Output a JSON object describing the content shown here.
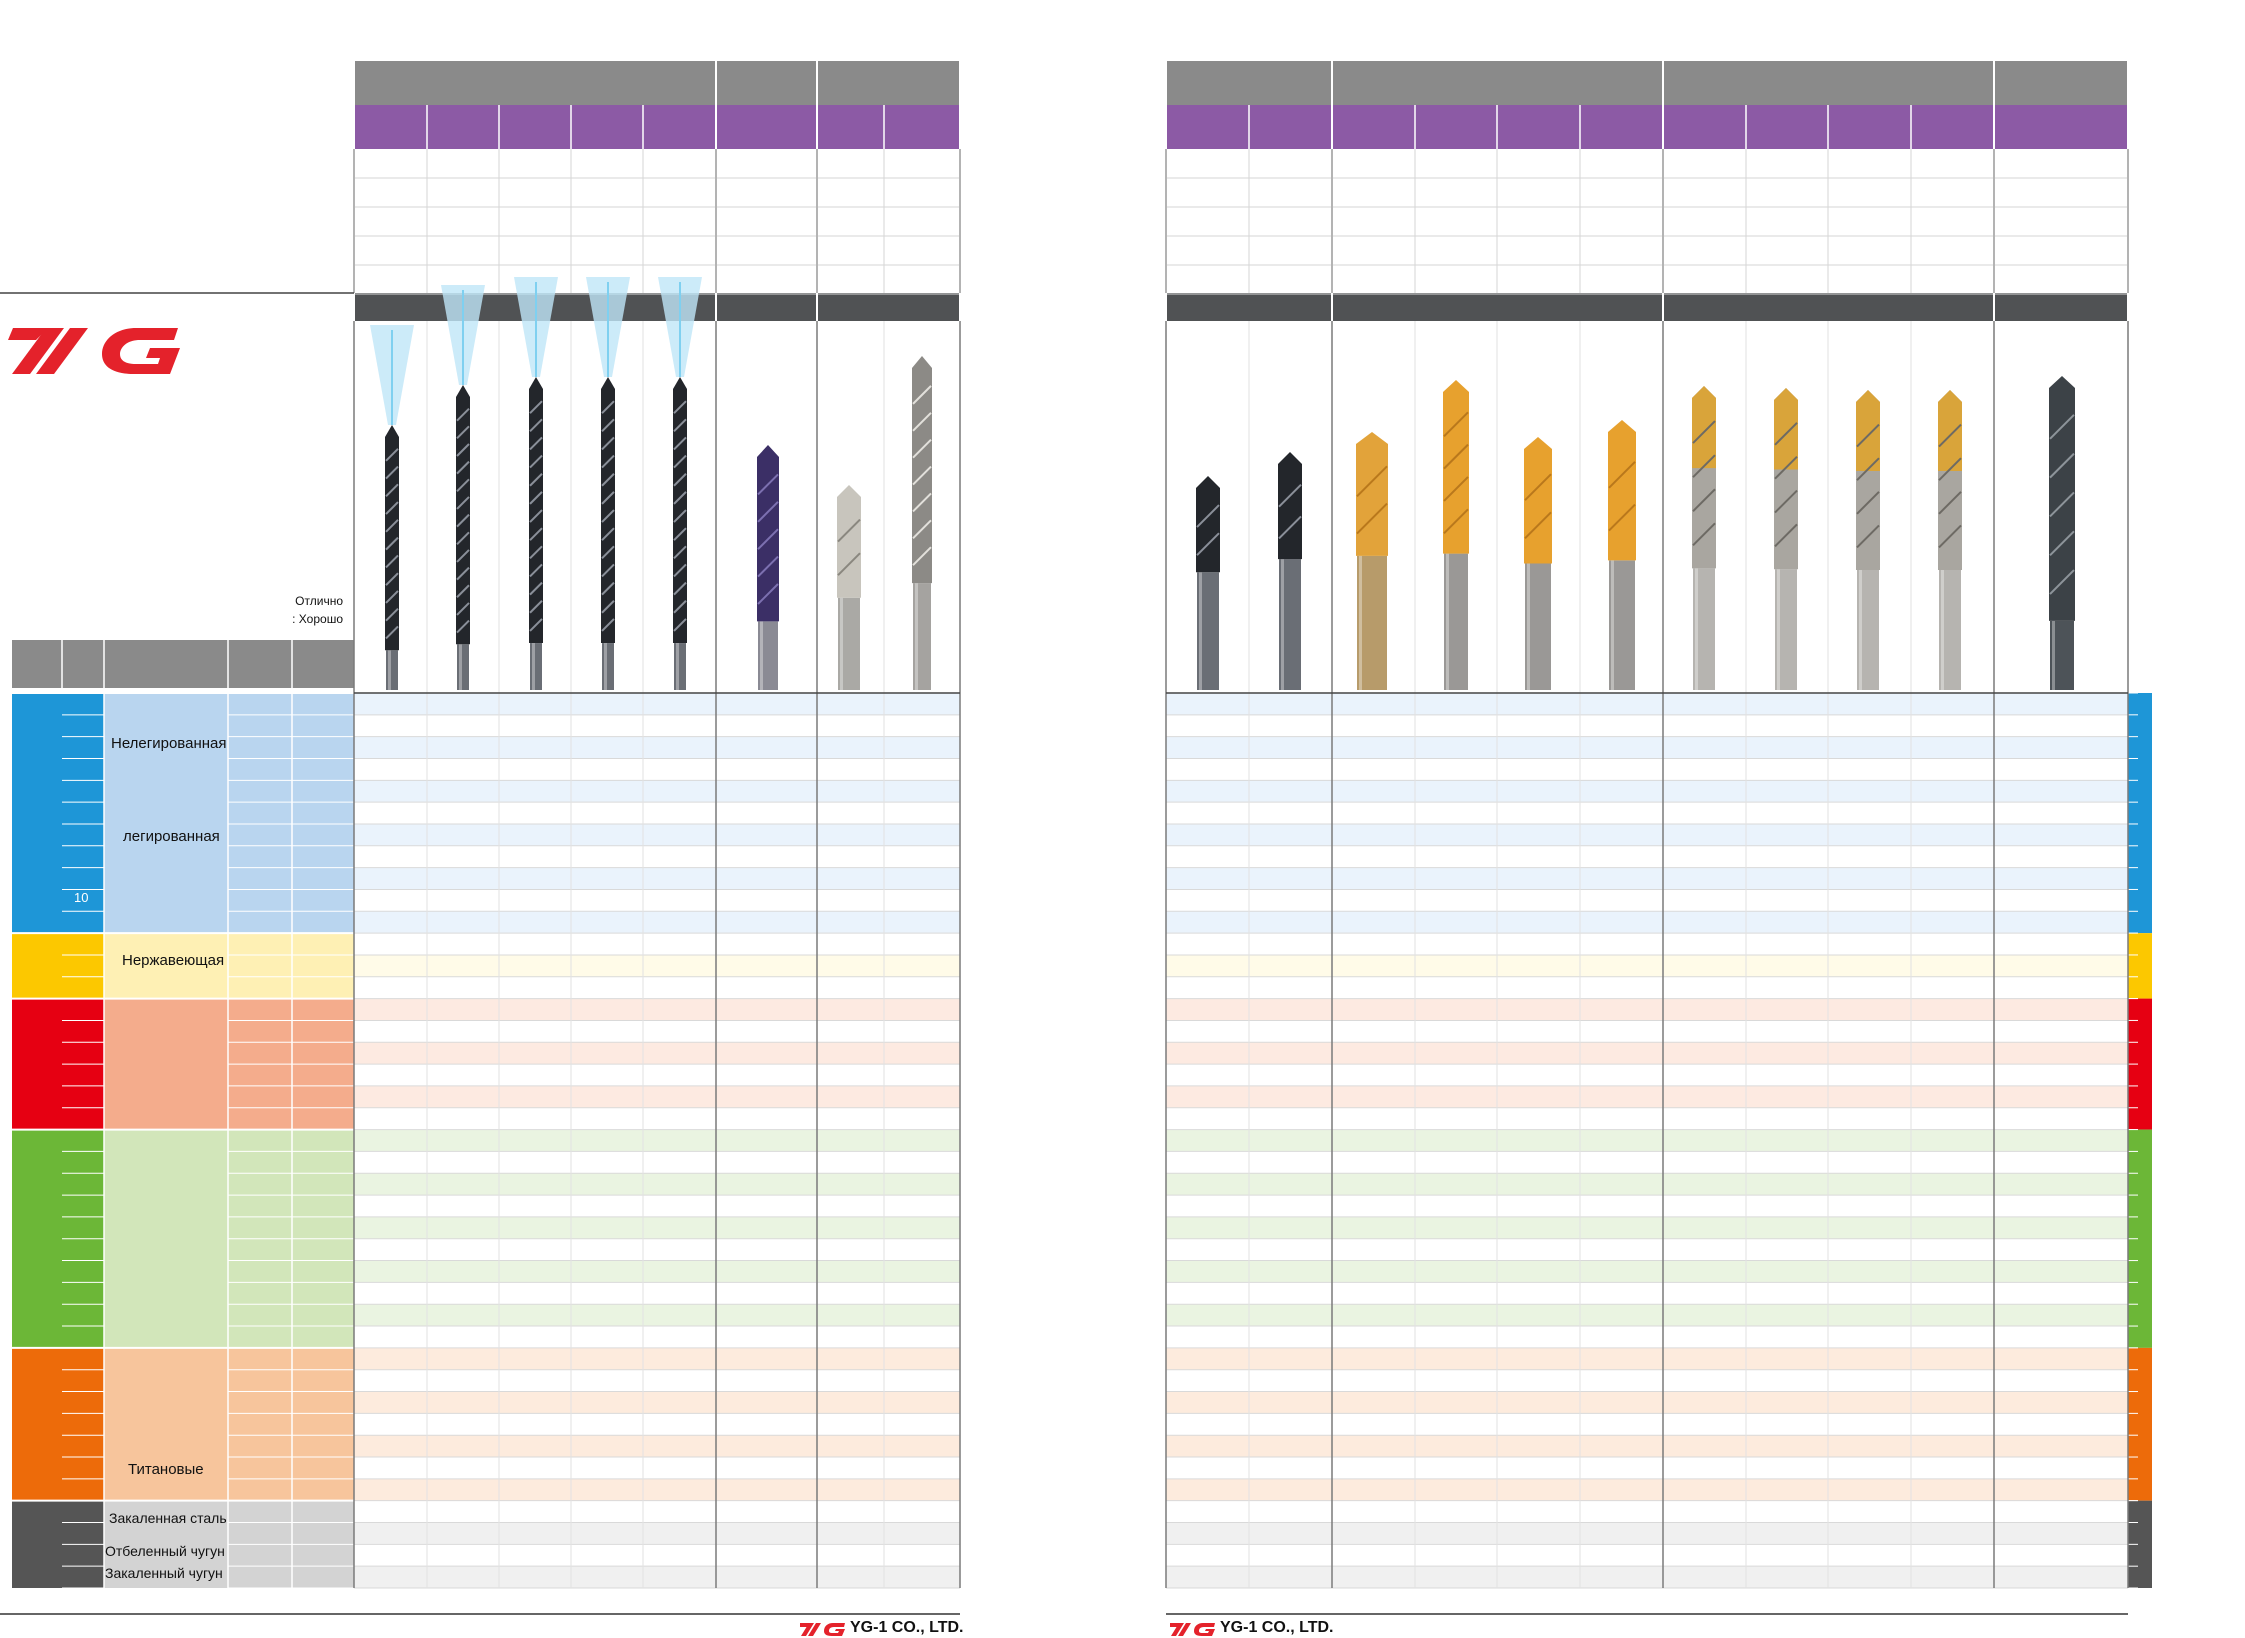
{
  "brand": {
    "name": "YG-1",
    "colors": {
      "red": "#e4222b",
      "header_gray": "#8a8a8a",
      "header_purple": "#8c5aa5",
      "dark_bar": "#505254"
    }
  },
  "legend": {
    "excellent": "Отлично",
    "good": ": Хорошо"
  },
  "materials": {
    "row_number_10": "10",
    "unalloyed": "Нелегированная",
    "alloyed": "легированная",
    "stainless": "Нержавеющая",
    "titanium": "Титановые",
    "hardened_steel": "Закаленная сталь",
    "chilled_cast_iron": "Отбеленный чугун",
    "hardened_cast_iron": "Закаленный чугун"
  },
  "groups": [
    {
      "key": "steel",
      "color": "#1e96d7",
      "light": "#b9d5ef",
      "table_tint": "#eaf3fc"
    },
    {
      "key": "stainless",
      "color": "#fcc800",
      "light": "#fef0b4",
      "table_tint": "#fffbe8"
    },
    {
      "key": "cast-iron",
      "color": "#e60012",
      "light": "#f4ac8c",
      "table_tint": "#fdeae1"
    },
    {
      "key": "non-ferrous",
      "color": "#6cb737",
      "light": "#d2e6ba",
      "table_tint": "#eaf4e1"
    },
    {
      "key": "super-alloy",
      "color": "#ed6b0a",
      "light": "#f7c59c",
      "table_tint": "#fdebdd"
    },
    {
      "key": "hard-material",
      "color": "#555555",
      "light": "#d3d3d3",
      "table_tint": "#f0f0f0"
    }
  ],
  "drill_icons": {
    "left": [
      "coolant-carbide-drill-icon",
      "coolant-carbide-drill-icon",
      "coolant-carbide-drill-icon",
      "coolant-carbide-drill-icon",
      "coolant-carbide-drill-icon",
      "carbide-stub-drill-icon",
      "hss-stub-drill-icon",
      "hss-jobber-drill-icon"
    ],
    "right": [
      "black-hss-drill-icon",
      "black-hss-drill-icon",
      "tin-coated-drill-icon",
      "tin-coated-drill-icon",
      "tin-coated-drill-icon",
      "tin-coated-drill-icon",
      "gold-tip-drill-icon",
      "gold-tip-drill-icon",
      "gold-tip-drill-icon",
      "gold-tip-drill-icon",
      "long-black-drill-icon"
    ]
  },
  "footer": {
    "left_company": "YG-1 CO., LTD.",
    "right_company": "YG-1 CO., LTD."
  }
}
